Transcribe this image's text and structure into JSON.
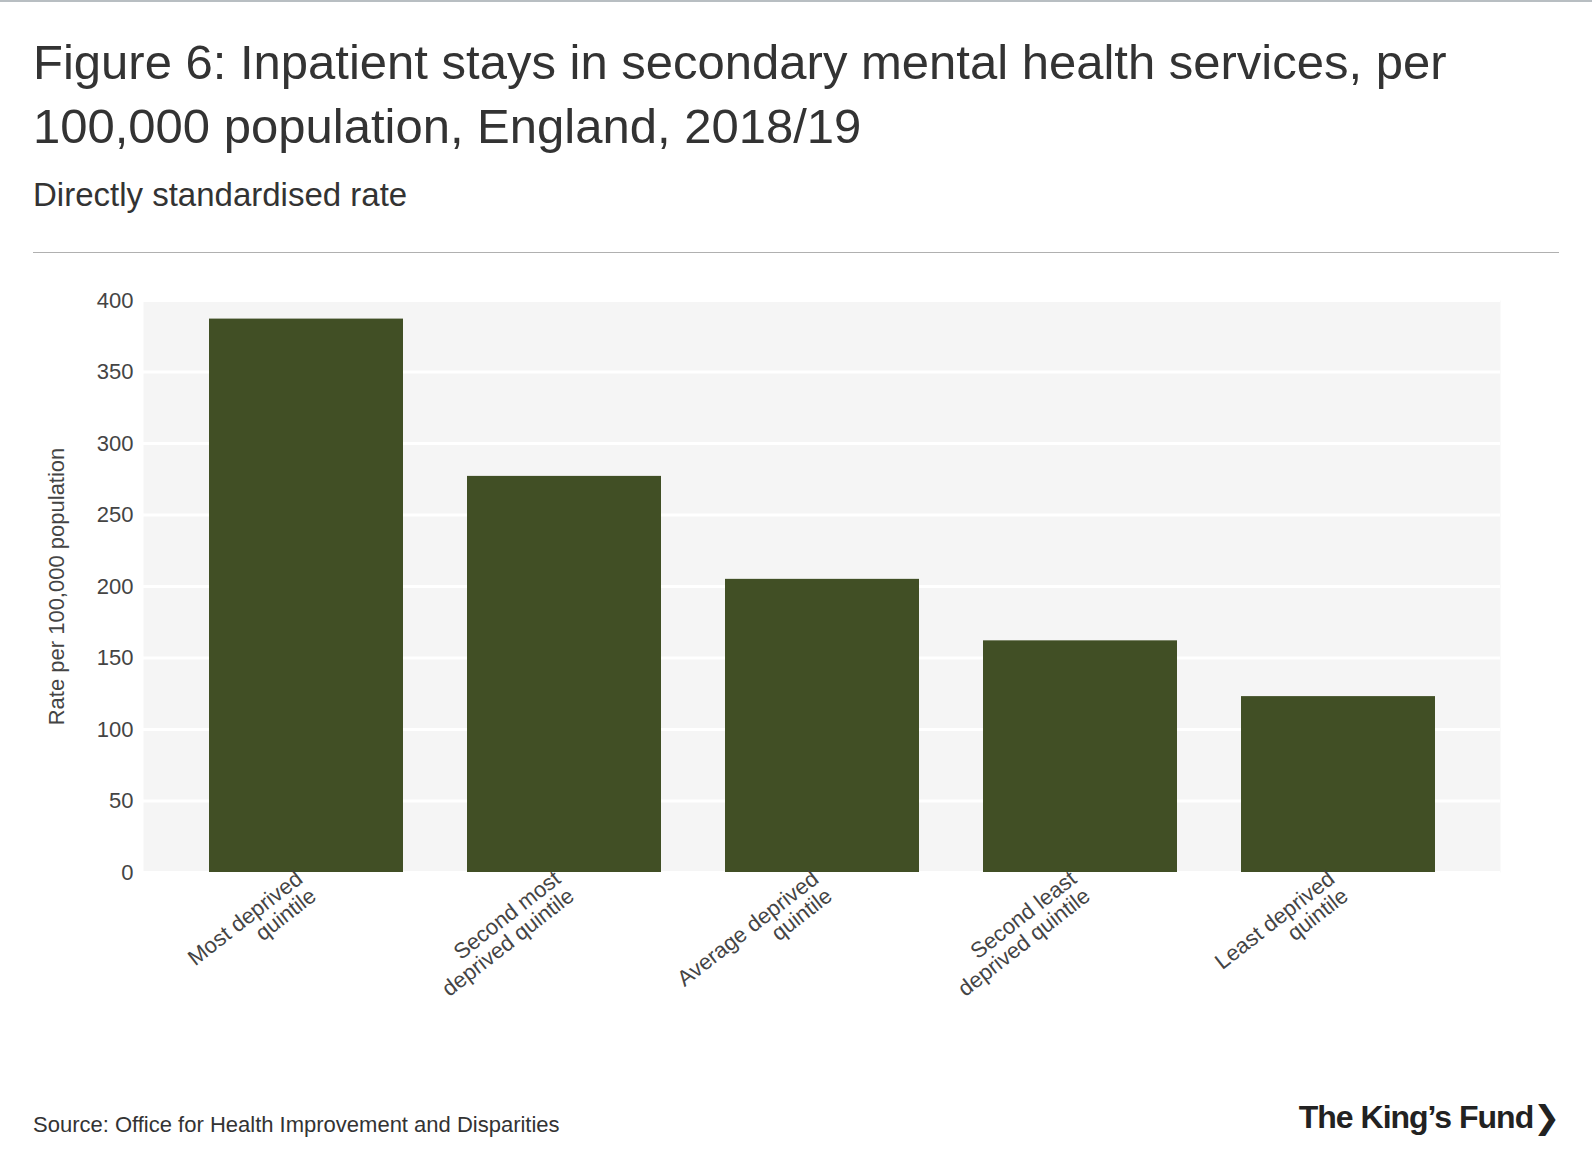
{
  "chart_data": {
    "type": "bar",
    "title": "Figure 6: Inpatient stays in secondary mental health services, per 100,000 population, England, 2018/19",
    "subtitle": "Directly standardised rate",
    "y_label": "Rate per 100,000 population",
    "categories": [
      "Most deprived\nquintile",
      "Second most\ndeprived quintile",
      "Average deprived\nquintile",
      "Second least\ndeprived quintile",
      "Least deprived\nquintile"
    ],
    "values": [
      387,
      277,
      205,
      162,
      123
    ],
    "color": "#414f25",
    "ylim": [
      0,
      400
    ],
    "yticks": [
      0,
      50,
      100,
      150,
      200,
      250,
      300,
      350,
      400
    ],
    "grid": true,
    "source": "Source: Office for Health Improvement and Disparities",
    "logo": "The King’s Fund❯"
  }
}
